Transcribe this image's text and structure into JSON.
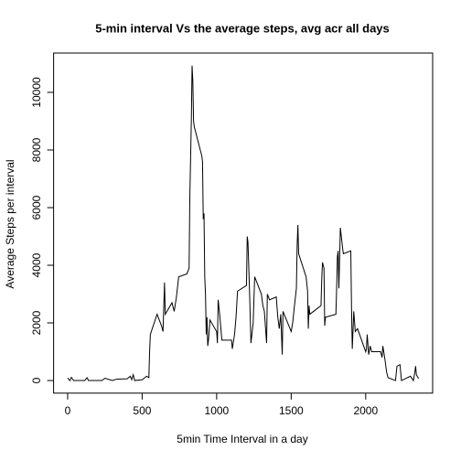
{
  "chart_data": {
    "type": "line",
    "title": "5-min interval Vs the average steps, avg acr all days",
    "x_label": "5min Time Interval in a day",
    "y_label": "Average Steps per interval",
    "color": "#000000",
    "x": [
      0,
      15,
      25,
      40,
      100,
      115,
      130,
      140,
      200,
      230,
      250,
      300,
      330,
      400,
      420,
      430,
      440,
      450,
      500,
      530,
      545,
      550,
      555,
      600,
      630,
      640,
      650,
      655,
      700,
      715,
      730,
      745,
      800,
      815,
      820,
      830,
      835,
      840,
      845,
      850,
      900,
      905,
      910,
      915,
      920,
      925,
      930,
      935,
      940,
      945,
      955,
      1000,
      1005,
      1010,
      1020,
      1035,
      1100,
      1105,
      1120,
      1130,
      1140,
      1200,
      1205,
      1210,
      1220,
      1230,
      1245,
      1255,
      1300,
      1310,
      1320,
      1335,
      1340,
      1355,
      1400,
      1410,
      1420,
      1430,
      1440,
      1445,
      1500,
      1510,
      1520,
      1535,
      1540,
      1545,
      1550,
      1600,
      1610,
      1615,
      1620,
      1625,
      1650,
      1700,
      1705,
      1710,
      1720,
      1725,
      1730,
      1800,
      1805,
      1810,
      1815,
      1820,
      1830,
      1845,
      1850,
      1900,
      1905,
      1910,
      1920,
      1930,
      1945,
      2000,
      2005,
      2010,
      2020,
      2030,
      2040,
      2100,
      2110,
      2115,
      2130,
      2140,
      2150,
      2200,
      2210,
      2230,
      2240,
      2300,
      2320,
      2330,
      2335,
      2340,
      2355
    ],
    "series": [
      {
        "name": "Average steps",
        "values": [
          91,
          0,
          110,
          0,
          0,
          0,
          100,
          0,
          0,
          0,
          80,
          0,
          50,
          60,
          150,
          30,
          200,
          0,
          30,
          150,
          100,
          1000,
          1600,
          2300,
          1900,
          1700,
          3400,
          2300,
          2700,
          2400,
          2900,
          3600,
          3700,
          3900,
          6400,
          9000,
          10927,
          10400,
          9000,
          8800,
          7800,
          7600,
          5600,
          5800,
          3600,
          3000,
          1600,
          2200,
          1200,
          1400,
          2100,
          1700,
          1300,
          2800,
          2300,
          1400,
          1400,
          1100,
          1600,
          2200,
          3100,
          3300,
          5000,
          4800,
          3200,
          1300,
          2000,
          3600,
          3000,
          2600,
          2400,
          1300,
          3000,
          2800,
          2900,
          2200,
          1800,
          2300,
          900,
          2400,
          1700,
          2000,
          2500,
          3200,
          4700,
          5400,
          4400,
          3600,
          3100,
          1800,
          2600,
          2300,
          2400,
          2600,
          3500,
          4100,
          3900,
          1900,
          2200,
          2300,
          3200,
          4300,
          4500,
          3200,
          5300,
          4600,
          4400,
          4500,
          2500,
          1100,
          2400,
          1700,
          1800,
          1000,
          1100,
          1600,
          900,
          1200,
          1000,
          1000,
          800,
          1200,
          700,
          300,
          100,
          0,
          500,
          550,
          0,
          150,
          0,
          300,
          500,
          200,
          70
        ]
      }
    ],
    "xlim": [
      -94.2,
      2449.2
    ],
    "ylim": [
      -437,
      11364
    ],
    "xticks": [
      0,
      500,
      1000,
      1500,
      2000
    ],
    "yticks": [
      0,
      2000,
      4000,
      6000,
      8000,
      10000
    ]
  }
}
